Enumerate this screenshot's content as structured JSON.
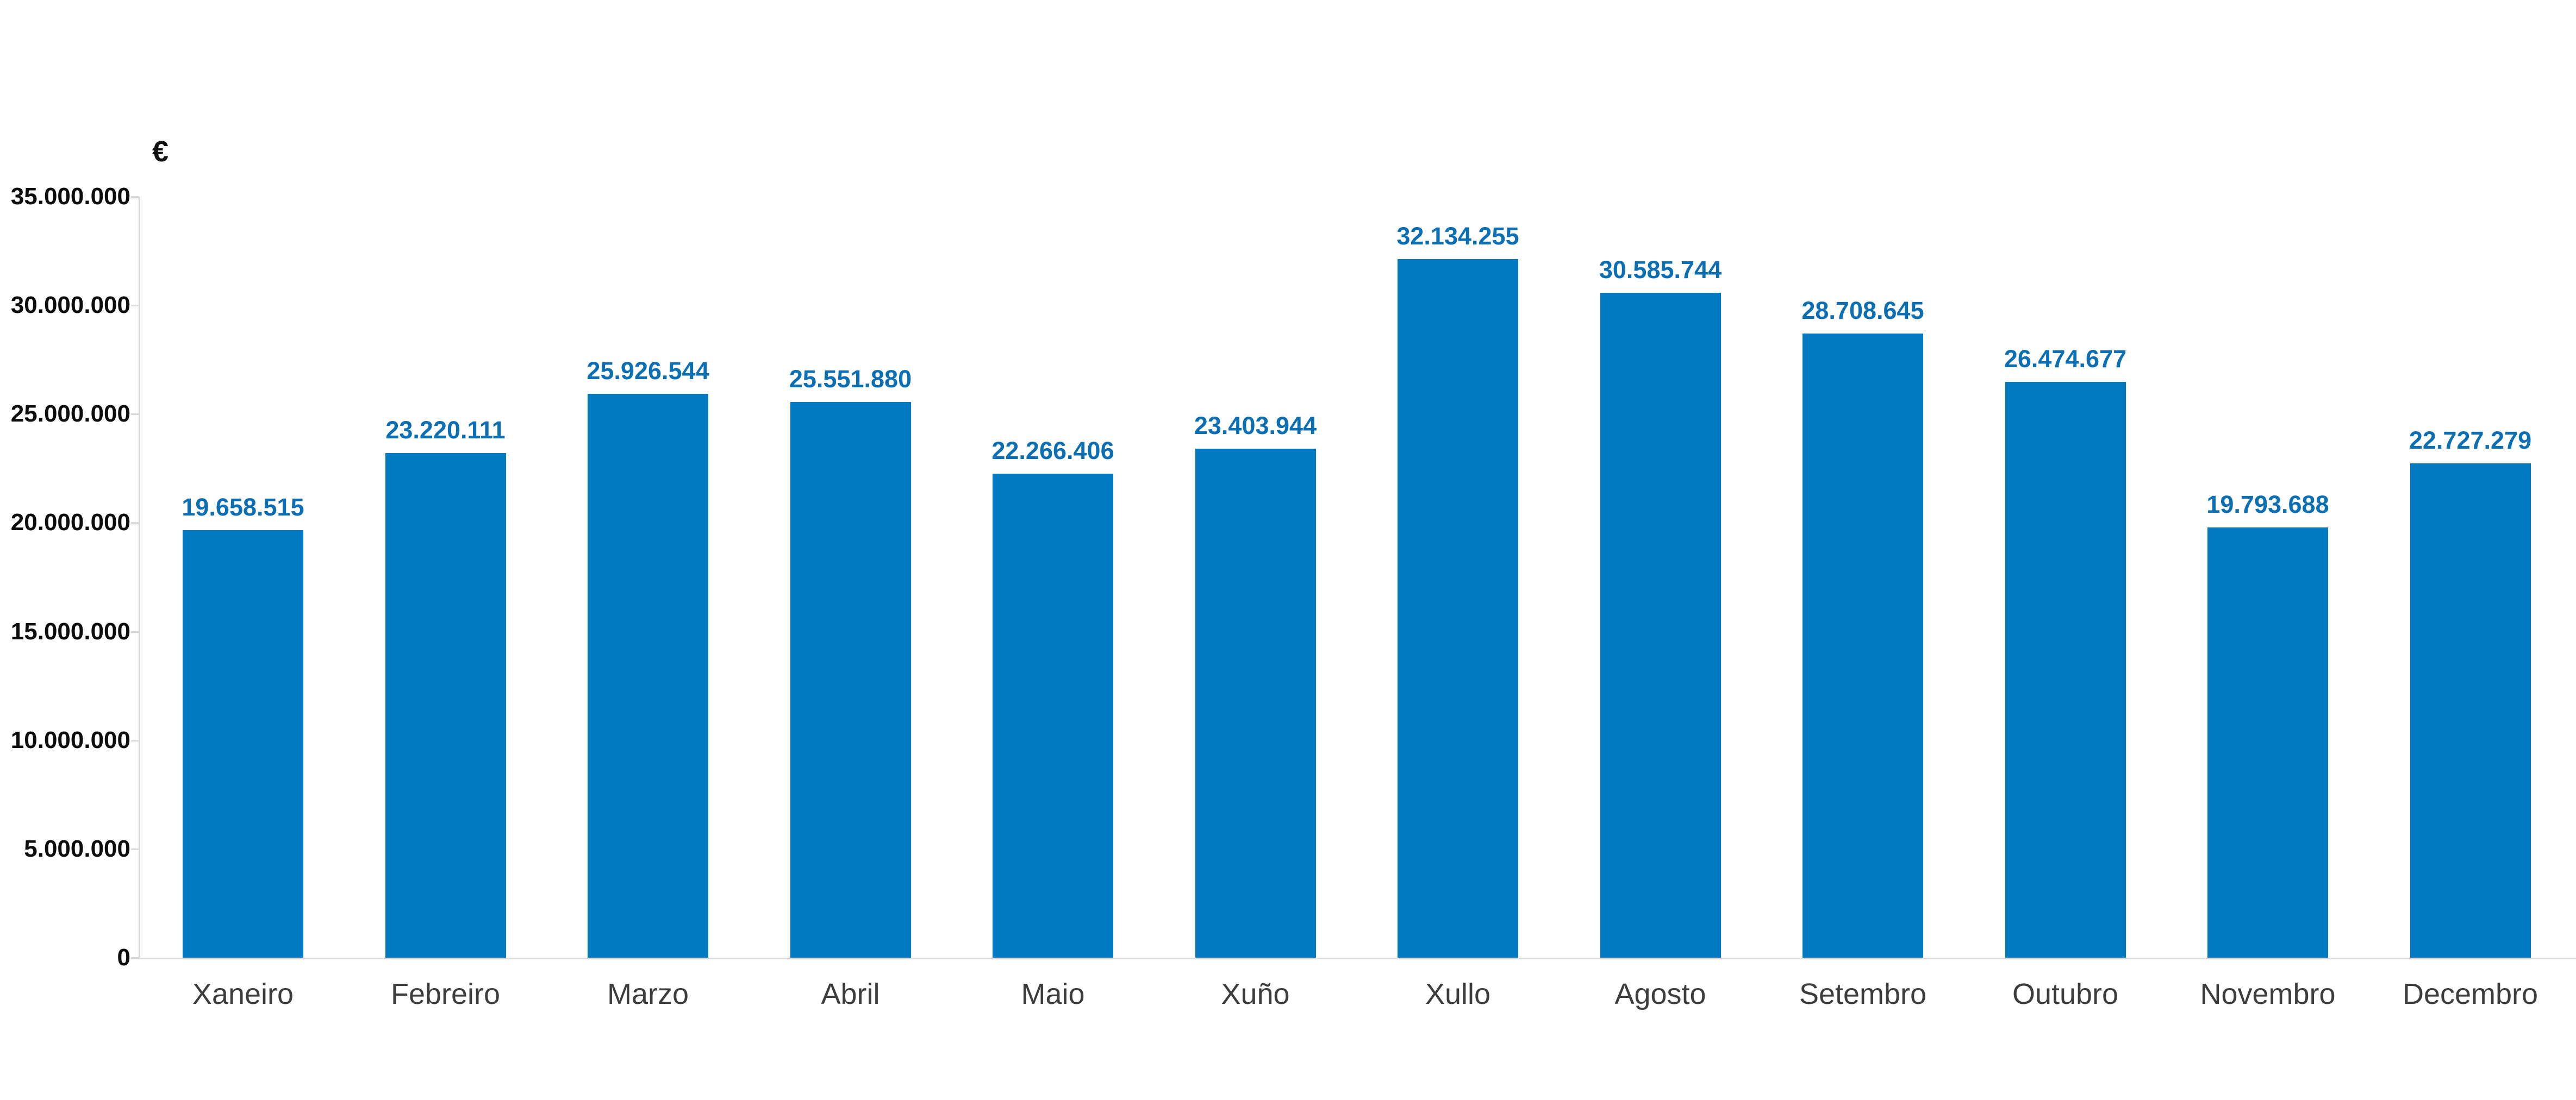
{
  "chart": {
    "unit_label": "€",
    "bar_color": "#027ac1",
    "value_label_color": "#0d6fb3",
    "axis_color": "#d9d9d9",
    "tick_label_color": "#0d0d0d",
    "category_label_color": "#3d3d3d"
  },
  "chart_data": {
    "type": "bar",
    "title": "",
    "xlabel": "",
    "ylabel": "€",
    "categories": [
      "Xaneiro",
      "Febreiro",
      "Marzo",
      "Abril",
      "Maio",
      "Xuño",
      "Xullo",
      "Agosto",
      "Setembro",
      "Outubro",
      "Novembro",
      "Decembro"
    ],
    "values": [
      19658515,
      23220111,
      25926544,
      25551880,
      22266406,
      23403944,
      32134255,
      30585744,
      28708645,
      26474677,
      19793688,
      22727279
    ],
    "value_labels": [
      "19.658.515",
      "23.220.111",
      "25.926.544",
      "25.551.880",
      "22.266.406",
      "23.403.944",
      "32.134.255",
      "30.585.744",
      "28.708.645",
      "26.474.677",
      "19.793.688",
      "22.727.279"
    ],
    "ylim": [
      0,
      35000000
    ],
    "ytick_step": 5000000,
    "ytick_labels": [
      "0",
      "5.000.000",
      "10.000.000",
      "15.000.000",
      "20.000.000",
      "25.000.000",
      "30.000.000",
      "35.000.000"
    ],
    "grid": false,
    "legend": null,
    "series_name": "",
    "bar_color": "#027ac1"
  }
}
